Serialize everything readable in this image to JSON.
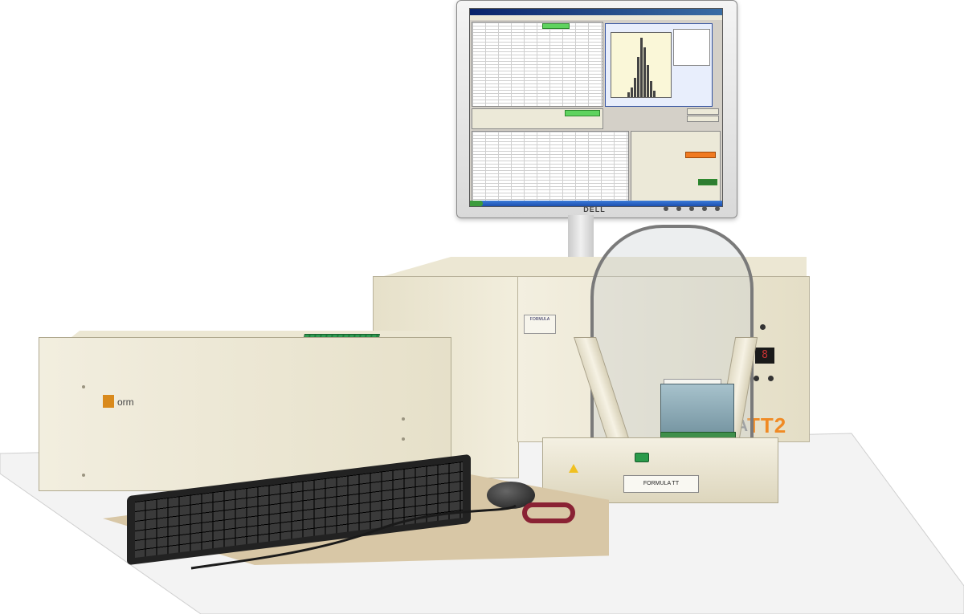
{
  "monitor": {
    "brand": "DELL",
    "screen": {
      "window_title": "",
      "menu": "",
      "primary_button_color": "#5fd35f",
      "alert_button_color": "#f07a20"
    }
  },
  "handler": {
    "front_label": "FORMULA TT"
  },
  "cabinet": {
    "model_prefix": "ULA",
    "model_suffix": "TT2",
    "display_value": "8",
    "front_plate": "FORMULA"
  },
  "rack": {
    "logo_text": "orm"
  },
  "colors": {
    "brand_orange": "#f08a24",
    "cabinet_beige": "#ece7d3",
    "pcb_green": "#2e9a52",
    "mat_tan": "#d8c7a6"
  }
}
